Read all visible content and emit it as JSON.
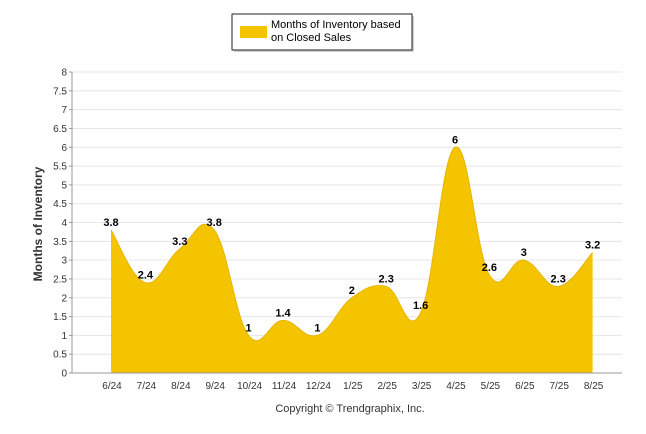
{
  "chart_data": {
    "type": "area",
    "categories": [
      "6/24",
      "7/24",
      "8/24",
      "9/24",
      "10/24",
      "11/24",
      "12/24",
      "1/25",
      "2/25",
      "3/25",
      "4/25",
      "5/25",
      "6/25",
      "7/25",
      "8/25"
    ],
    "series": [
      {
        "name": "Months of Inventory based on Closed Sales",
        "values": [
          3.8,
          2.4,
          3.3,
          3.8,
          1,
          1.4,
          1,
          2,
          2.3,
          1.6,
          6,
          2.6,
          3,
          2.3,
          3.2
        ],
        "labels": [
          "3.8",
          "2.4",
          "3.3",
          "3.8",
          "1",
          "1.4",
          "1",
          "2",
          "2.3",
          "1.6",
          "6",
          "2.6",
          "3",
          "2.3",
          "3.2"
        ],
        "color": "#f5c400"
      }
    ],
    "title": "",
    "xlabel": "",
    "ylabel": "Months of Inventory",
    "ylim": [
      0,
      8
    ],
    "yticks": [
      "0",
      "0.5",
      "1",
      "1.5",
      "2",
      "2.5",
      "3",
      "3.5",
      "4",
      "4.5",
      "5",
      "5.5",
      "6",
      "6.5",
      "7",
      "7.5",
      "8"
    ],
    "grid": true,
    "smooth": true,
    "legend": {
      "placement": "top-center",
      "lines": [
        "Months of Inventory based",
        "on Closed Sales"
      ]
    },
    "footer": "Copyright © Trendgraphix, Inc."
  }
}
